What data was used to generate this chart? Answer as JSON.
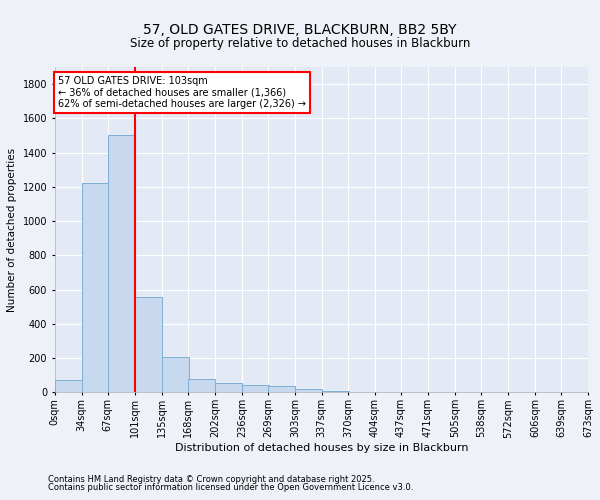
{
  "title_line1": "57, OLD GATES DRIVE, BLACKBURN, BB2 5BY",
  "title_line2": "Size of property relative to detached houses in Blackburn",
  "xlabel": "Distribution of detached houses by size in Blackburn",
  "ylabel": "Number of detached properties",
  "bin_labels": [
    "0sqm",
    "34sqm",
    "67sqm",
    "101sqm",
    "135sqm",
    "168sqm",
    "202sqm",
    "236sqm",
    "269sqm",
    "303sqm",
    "337sqm",
    "370sqm",
    "404sqm",
    "437sqm",
    "471sqm",
    "505sqm",
    "538sqm",
    "572sqm",
    "606sqm",
    "639sqm",
    "673sqm"
  ],
  "bin_edges": [
    0,
    34,
    67,
    101,
    135,
    168,
    202,
    236,
    269,
    303,
    337,
    370,
    404,
    437,
    471,
    505,
    538,
    572,
    606,
    639,
    673
  ],
  "bar_values": [
    75,
    1225,
    1500,
    560,
    205,
    80,
    55,
    45,
    35,
    20,
    8,
    4,
    2,
    1,
    0,
    0,
    0,
    0,
    0,
    0
  ],
  "bar_color": "#c8d9ef",
  "bar_edge_color": "#7bafd4",
  "property_line_x": 101,
  "property_line_color": "red",
  "annotation_text": "57 OLD GATES DRIVE: 103sqm\n← 36% of detached houses are smaller (1,366)\n62% of semi-detached houses are larger (2,326) →",
  "annotation_box_color": "white",
  "annotation_box_edge_color": "red",
  "ylim": [
    0,
    1900
  ],
  "yticks": [
    0,
    200,
    400,
    600,
    800,
    1000,
    1200,
    1400,
    1600,
    1800
  ],
  "footnote_line1": "Contains HM Land Registry data © Crown copyright and database right 2025.",
  "footnote_line2": "Contains public sector information licensed under the Open Government Licence v3.0.",
  "bg_color": "#eef2f8",
  "plot_bg_color": "#e4eaf5",
  "title_fontsize": 10,
  "subtitle_fontsize": 8.5,
  "xlabel_fontsize": 8,
  "ylabel_fontsize": 7.5,
  "tick_fontsize": 7,
  "footnote_fontsize": 6
}
